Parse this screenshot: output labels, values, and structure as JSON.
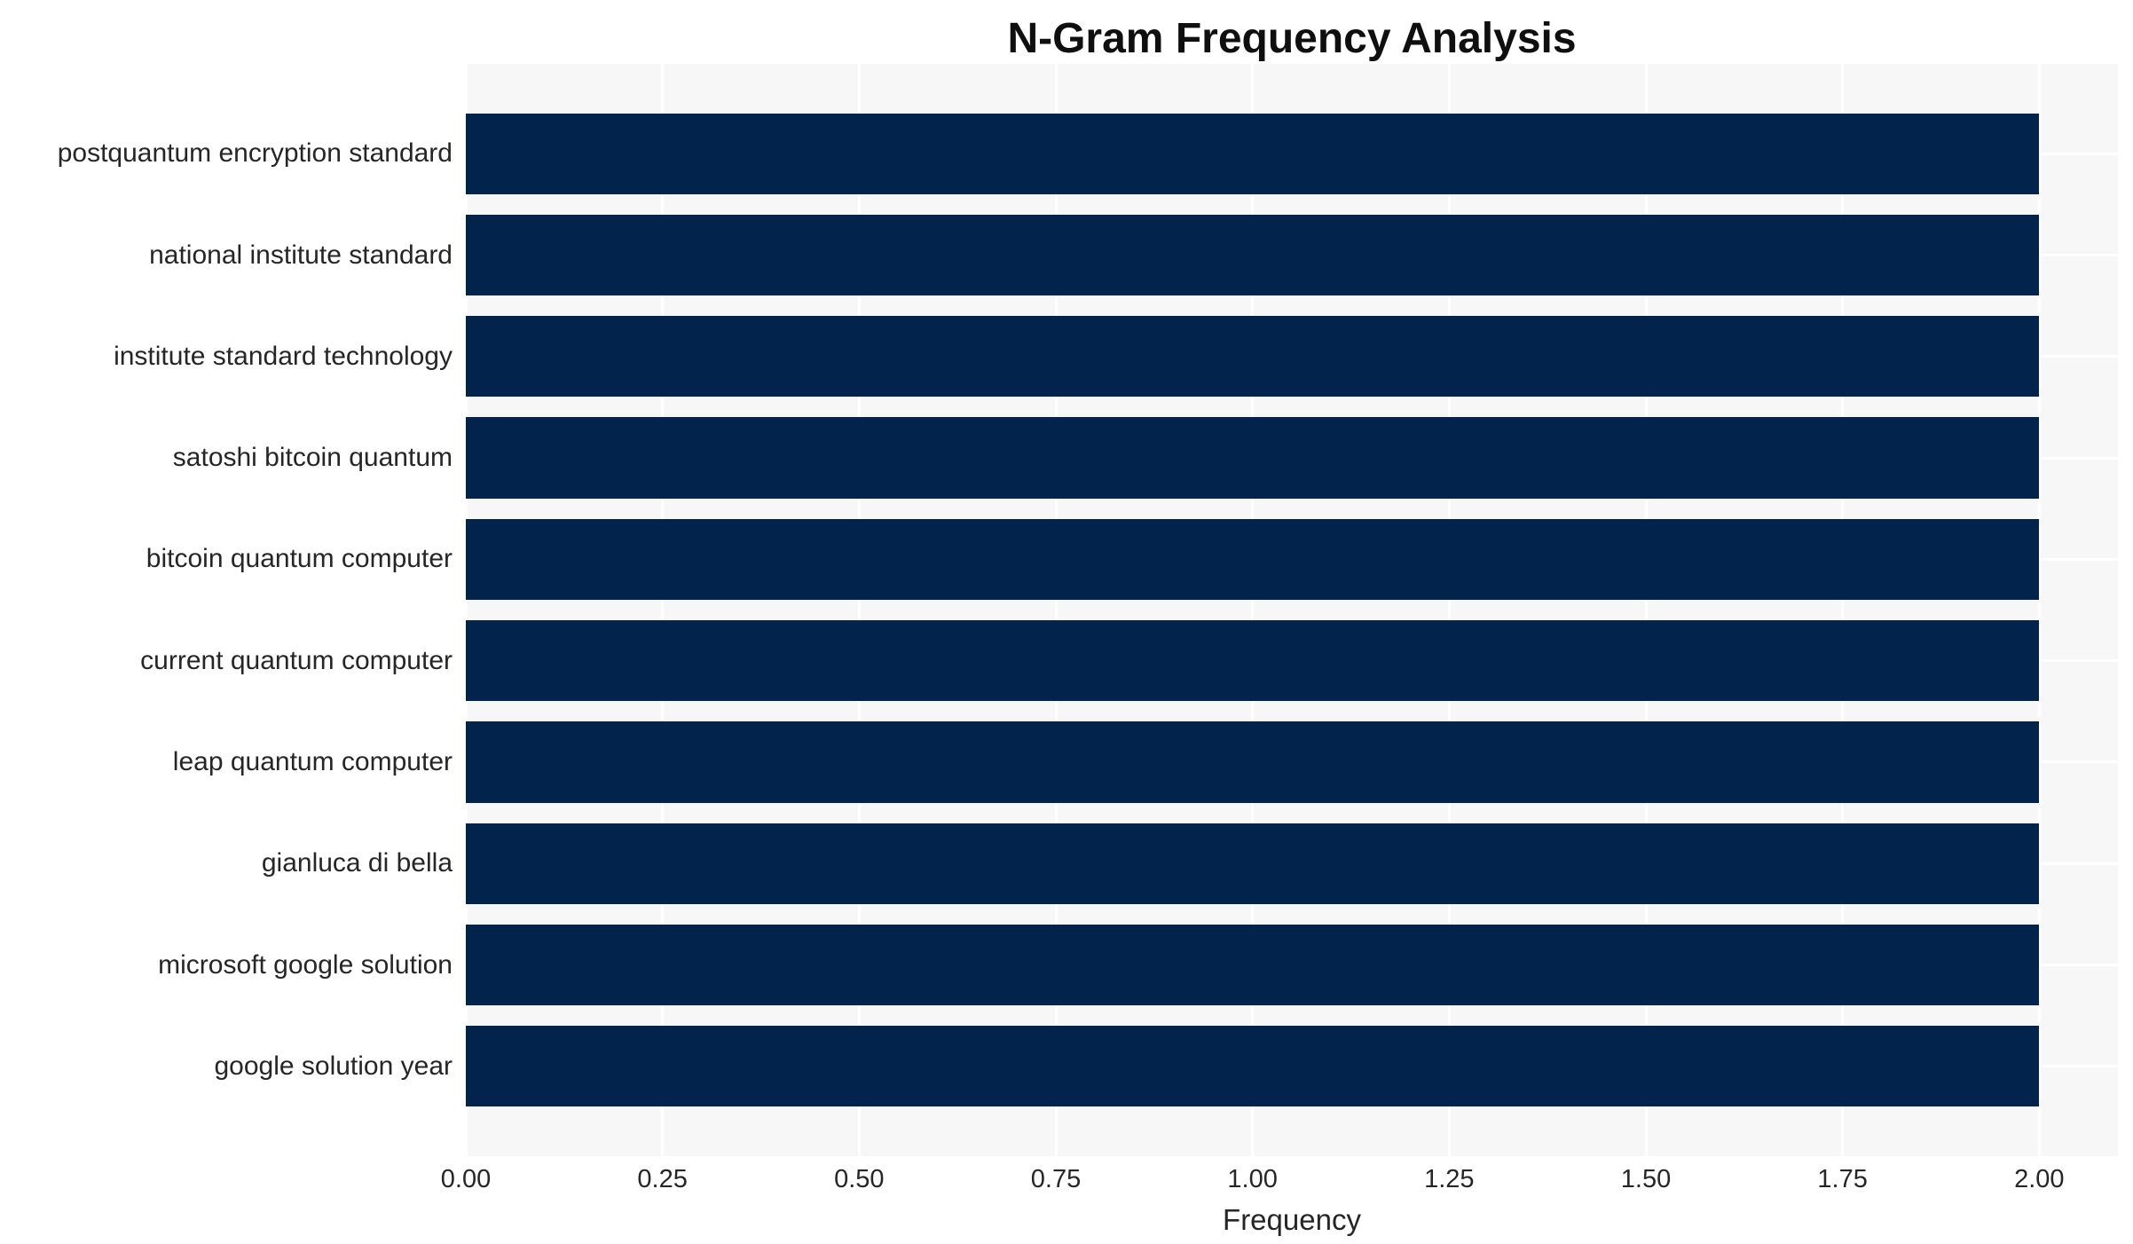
{
  "chart_data": {
    "type": "bar",
    "orientation": "horizontal",
    "title": "N-Gram Frequency Analysis",
    "xlabel": "Frequency",
    "ylabel": "",
    "categories": [
      "postquantum encryption standard",
      "national institute standard",
      "institute standard technology",
      "satoshi bitcoin quantum",
      "bitcoin quantum computer",
      "current quantum computer",
      "leap quantum computer",
      "gianluca di bella",
      "microsoft google solution",
      "google solution year"
    ],
    "values": [
      2,
      2,
      2,
      2,
      2,
      2,
      2,
      2,
      2,
      2
    ],
    "xlim": [
      0,
      2.1
    ],
    "xticks": [
      {
        "value": 0.0,
        "label": "0.00"
      },
      {
        "value": 0.25,
        "label": "0.25"
      },
      {
        "value": 0.5,
        "label": "0.50"
      },
      {
        "value": 0.75,
        "label": "0.75"
      },
      {
        "value": 1.0,
        "label": "1.00"
      },
      {
        "value": 1.25,
        "label": "1.25"
      },
      {
        "value": 1.5,
        "label": "1.50"
      },
      {
        "value": 1.75,
        "label": "1.75"
      },
      {
        "value": 2.0,
        "label": "2.00"
      }
    ],
    "grid": true,
    "legend_position": "none",
    "colors": {
      "bar": "#02234b",
      "plot_background": "#f7f7f8",
      "gridline": "#ffffff",
      "text": "#262626",
      "title_text": "#0f0f0f"
    }
  }
}
